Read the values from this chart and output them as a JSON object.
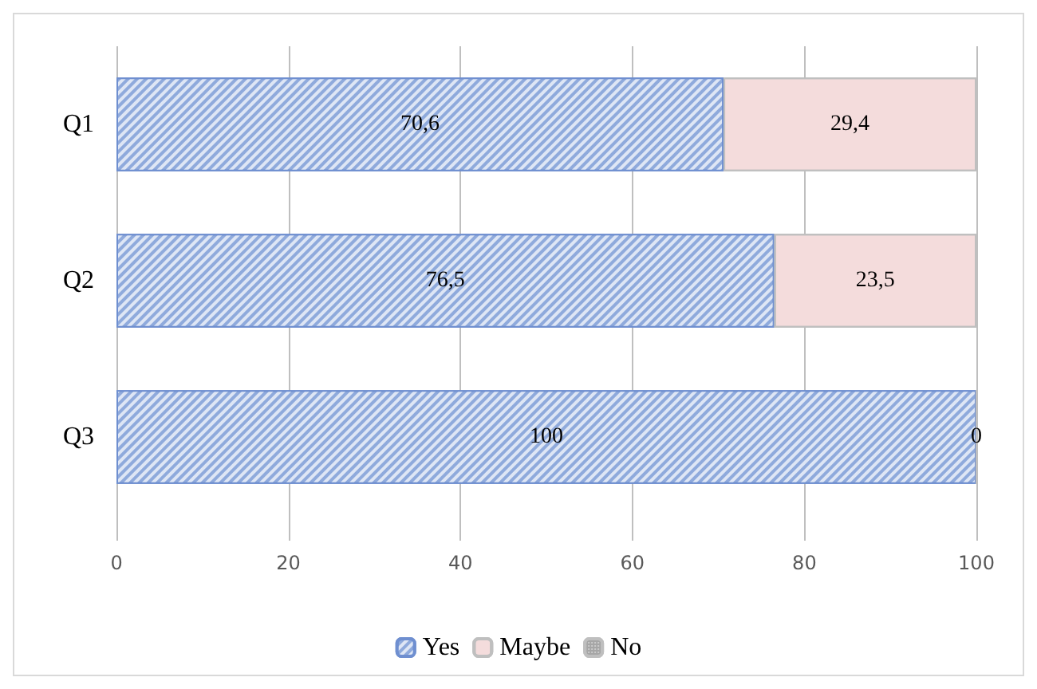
{
  "chart_data": {
    "type": "bar",
    "orientation": "horizontal",
    "stacked": true,
    "categories": [
      "Q1",
      "Q2",
      "Q3"
    ],
    "series": [
      {
        "name": "Yes",
        "color": "#8faadc",
        "values": [
          70.6,
          76.5,
          100
        ],
        "value_labels": [
          "70,6",
          "76,5",
          "100"
        ]
      },
      {
        "name": "Maybe",
        "color": "#f4dcdc",
        "values": [
          29.4,
          23.5,
          0
        ],
        "value_labels": [
          "29,4",
          "23,5",
          "0"
        ]
      },
      {
        "name": "No",
        "color": "#a6a6a6",
        "values": [
          null,
          null,
          null
        ]
      }
    ],
    "xlim": [
      0,
      100
    ],
    "xticks": [
      0,
      20,
      40,
      60,
      80,
      100
    ],
    "grid": "x",
    "legend": "bottom"
  }
}
